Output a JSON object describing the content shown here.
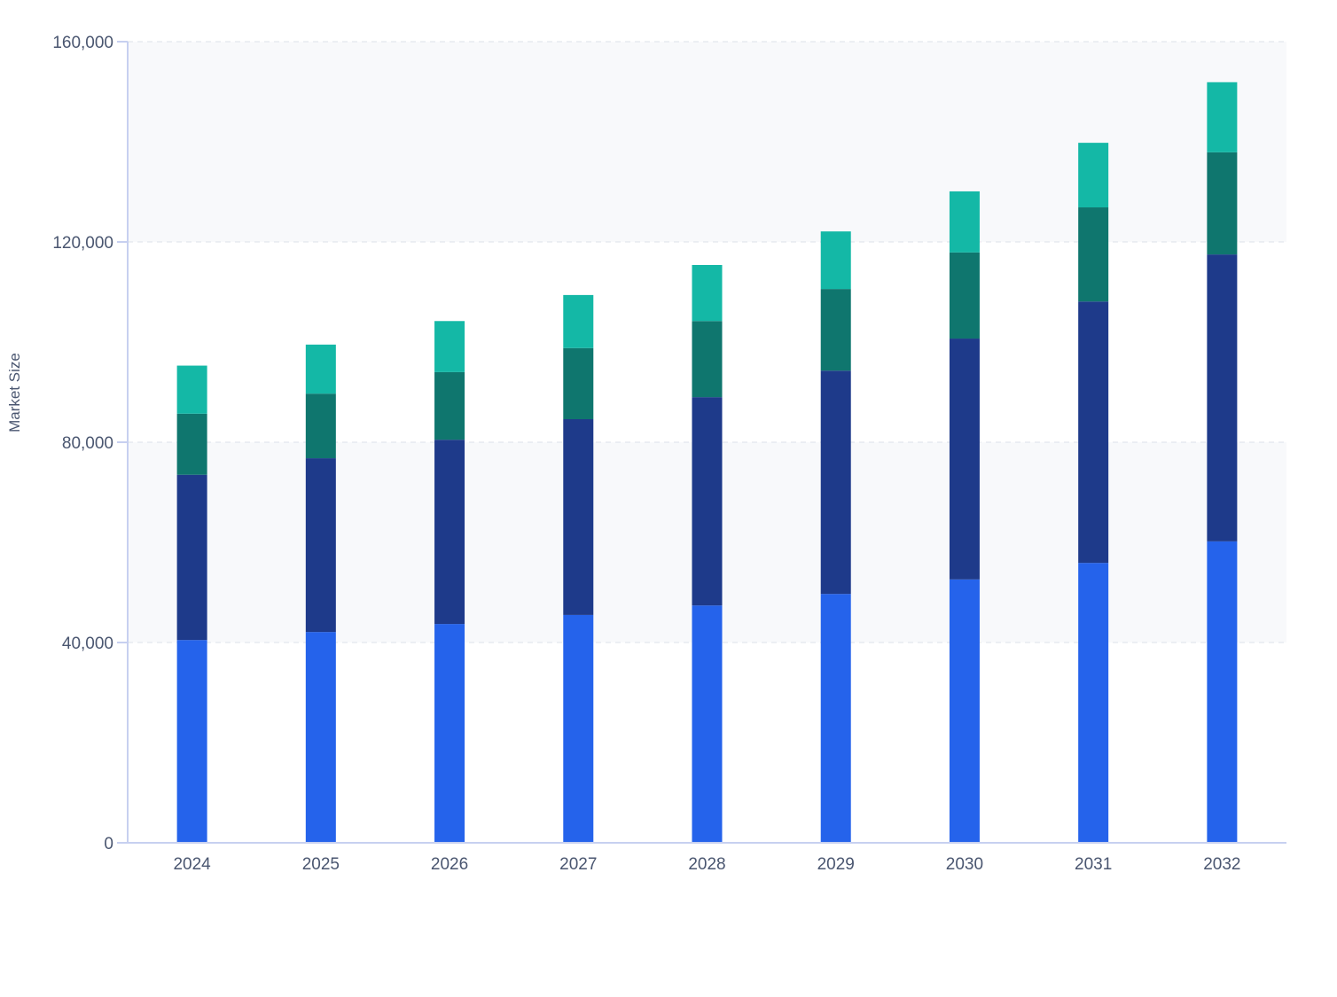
{
  "chart_data": {
    "type": "bar",
    "stacked": true,
    "title": "",
    "xlabel": "",
    "ylabel": "Market Size",
    "ylim": [
      0,
      160000
    ],
    "yticks": [
      0,
      40000,
      80000,
      120000,
      160000
    ],
    "ytick_labels": [
      "0",
      "40,000",
      "80,000",
      "120,000",
      "160,000"
    ],
    "grid": true,
    "legend": "none",
    "categories": [
      "2024",
      "2025",
      "2026",
      "2027",
      "2028",
      "2029",
      "2030",
      "2031",
      "2032"
    ],
    "series": [
      {
        "color": "#2563eb",
        "values": [
          40500,
          42100,
          43700,
          45500,
          47400,
          49700,
          52600,
          55900,
          60200
        ]
      },
      {
        "color": "#1e3a8a",
        "values": [
          33000,
          34700,
          36800,
          39100,
          41600,
          44600,
          48100,
          52200,
          57300
        ]
      },
      {
        "color": "#0f766e",
        "values": [
          12200,
          12900,
          13500,
          14200,
          15200,
          16300,
          17200,
          18800,
          20400
        ]
      },
      {
        "color": "#14b8a6",
        "values": [
          9600,
          9800,
          10200,
          10600,
          11200,
          11500,
          12200,
          12900,
          14000
        ]
      }
    ]
  }
}
